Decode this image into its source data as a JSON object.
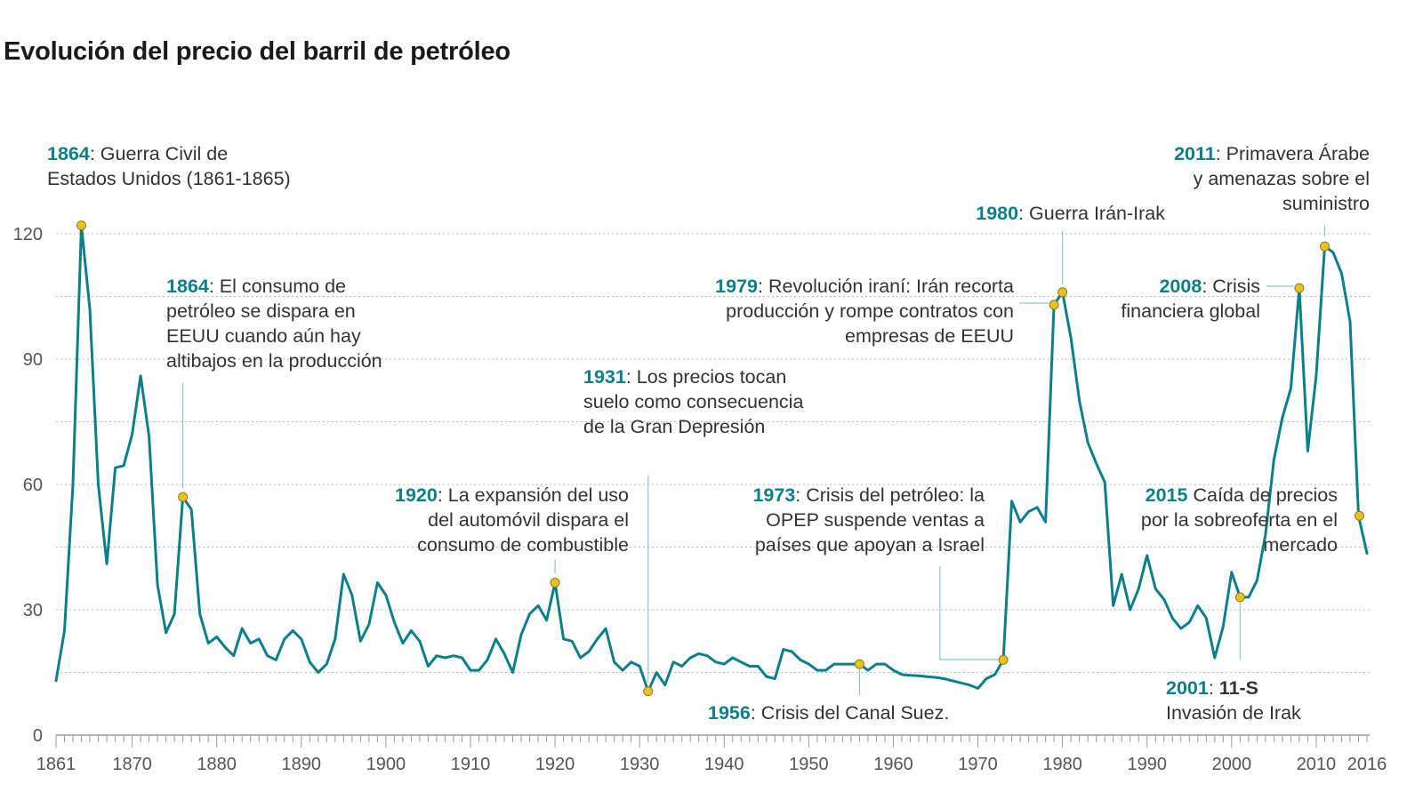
{
  "chart_data": {
    "type": "line",
    "title": "Evolución del precio del barril de petróleo",
    "xlabel": "",
    "ylabel": "",
    "xlim": [
      1861,
      2016
    ],
    "ylim": [
      0,
      125
    ],
    "grid": true,
    "line_color": "#0b7f8a",
    "marker_color": "#e8c31f",
    "yticks": [
      "0",
      "30",
      "60",
      "90",
      "120"
    ],
    "xticks": [
      "1861",
      "1870",
      "1880",
      "1890",
      "1900",
      "1910",
      "1920",
      "1930",
      "1940",
      "1950",
      "1960",
      "1970",
      "1980",
      "1990",
      "2000",
      "2010",
      "2016"
    ],
    "series": [
      {
        "x": [
          1861,
          1862,
          1863,
          1864,
          1865,
          1866,
          1867,
          1868,
          1869,
          1870,
          1871,
          1872,
          1873,
          1874,
          1875,
          1876,
          1877,
          1878,
          1879,
          1880,
          1881,
          1882,
          1883,
          1884,
          1885,
          1886,
          1887,
          1888,
          1889,
          1890,
          1891,
          1892,
          1893,
          1894,
          1895,
          1896,
          1897,
          1898,
          1899,
          1900,
          1901,
          1902,
          1903,
          1904,
          1905,
          1906,
          1907,
          1908,
          1909,
          1910,
          1911,
          1912,
          1913,
          1914,
          1915,
          1916,
          1917,
          1918,
          1919,
          1920,
          1921,
          1922,
          1923,
          1924,
          1925,
          1926,
          1927,
          1928,
          1929,
          1930,
          1931,
          1932,
          1933,
          1934,
          1935,
          1936,
          1937,
          1938,
          1939,
          1940,
          1941,
          1942,
          1943,
          1944,
          1945,
          1946,
          1947,
          1948,
          1949,
          1950,
          1951,
          1952,
          1953,
          1954,
          1955,
          1956,
          1957,
          1958,
          1959,
          1960,
          1961,
          1962,
          1963,
          1964,
          1965,
          1966,
          1967,
          1968,
          1969,
          1970,
          1971,
          1972,
          1973,
          1974,
          1975,
          1976,
          1977,
          1978,
          1979,
          1980,
          1981,
          1982,
          1983,
          1984,
          1985,
          1986,
          1987,
          1988,
          1989,
          1990,
          1991,
          1992,
          1993,
          1994,
          1995,
          1996,
          1997,
          1998,
          1999,
          2000,
          2001,
          2002,
          2003,
          2004,
          2005,
          2006,
          2007,
          2008,
          2009,
          2010,
          2011,
          2012,
          2013,
          2014,
          2015,
          2016
        ],
        "y": [
          13,
          25,
          60,
          122,
          102,
          60,
          41,
          64,
          64.5,
          72,
          86,
          71.5,
          36,
          24.5,
          29,
          57,
          54,
          29,
          22,
          23.5,
          21,
          19,
          25.5,
          22,
          23,
          19,
          18,
          23,
          25,
          23,
          17.5,
          15,
          17,
          23,
          38.5,
          33.5,
          22.5,
          26.5,
          36.5,
          33.5,
          27,
          22,
          25,
          22.5,
          16.5,
          19,
          18.5,
          19,
          18.5,
          15.5,
          15.5,
          18,
          23,
          19.5,
          15,
          24,
          29,
          31,
          27.5,
          36.5,
          23,
          22.5,
          18.5,
          20,
          23,
          25.5,
          17.5,
          15.5,
          17.5,
          16.5,
          10.5,
          15,
          12,
          17.5,
          16.5,
          18.5,
          19.5,
          19,
          17.5,
          17,
          18.5,
          17.5,
          16.5,
          16.5,
          14,
          13.5,
          20.5,
          20,
          18,
          17,
          15.5,
          15.5,
          17,
          17,
          17,
          17,
          15.5,
          17,
          17,
          15.5,
          14.5,
          14.3,
          14.2,
          14,
          13.8,
          13.5,
          13,
          12.5,
          12,
          11.2,
          13.5,
          14.5,
          18,
          56,
          51,
          53.5,
          54.5,
          51,
          103,
          106,
          95,
          80,
          70,
          65,
          60.5,
          31,
          38.5,
          30,
          35,
          43,
          35,
          32.5,
          28,
          25.5,
          27,
          31,
          28,
          18.5,
          26,
          39,
          33,
          33,
          37,
          48,
          66,
          76,
          83,
          107,
          68,
          86,
          117,
          115.5,
          110.5,
          99,
          52.5,
          43.5
        ]
      }
    ],
    "annotations": [
      {
        "year": "1864",
        "text": ": Guerra Civil de",
        "lines": [
          "Estados Unidos (1861-1865)"
        ]
      },
      {
        "year": "1864",
        "text": ": El consumo de",
        "lines": [
          "petróleo se dispara en",
          "EEUU cuando aún hay",
          "altibajos en la producción"
        ]
      },
      {
        "year": "1920",
        "text": ": La expansión del uso",
        "lines": [
          "del automóvil dispara el",
          "consumo de combustible"
        ]
      },
      {
        "year": "1931",
        "text": ": Los precios tocan",
        "lines": [
          "suelo como consecuencia",
          "de la Gran Depresión"
        ]
      },
      {
        "year": "1956",
        "text": ": Crisis del Canal Suez.",
        "lines": []
      },
      {
        "year": "1973",
        "text": ": Crisis del petróleo: la",
        "lines": [
          "OPEP suspende ventas a",
          "países que apoyan a Israel"
        ]
      },
      {
        "year": "1979",
        "text": ": Revolución iraní: Irán recorta",
        "lines": [
          "producción y rompe contratos con",
          "empresas de EEUU"
        ]
      },
      {
        "year": "1980",
        "text": ": Guerra Irán-Irak",
        "lines": []
      },
      {
        "year": "2001",
        "text": ": ",
        "bold": "11-S",
        "lines": [
          "Invasión de Irak"
        ]
      },
      {
        "year": "2008",
        "text": ": Crisis",
        "lines": [
          "financiera global"
        ]
      },
      {
        "year": "2011",
        "text": ": Primavera Árabe",
        "lines": [
          "y amenazas sobre el",
          "suministro"
        ]
      },
      {
        "year": "2015",
        "text": " Caída de precios",
        "lines": [
          "por la sobreoferta en el",
          "mercado"
        ]
      }
    ]
  }
}
